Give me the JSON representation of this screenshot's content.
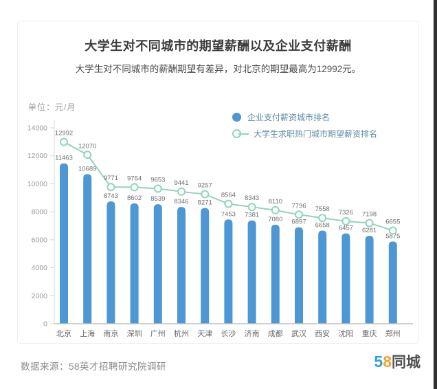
{
  "header": {
    "title": "大学生对不同城市的期望薪酬以及企业支付薪酬",
    "subtitle": "大学生对不同城市的薪酬期望有差异，对北京的期望最高为12992元。"
  },
  "chart_data": {
    "type": "bar",
    "title": "大学生对不同城市的期望薪酬以及企业支付薪酬",
    "unit_label": "单位：元/月",
    "categories": [
      "北京",
      "上海",
      "南京",
      "深圳",
      "广州",
      "杭州",
      "天津",
      "长沙",
      "济南",
      "成都",
      "武汉",
      "西安",
      "沈阳",
      "重庆",
      "郑州"
    ],
    "series": [
      {
        "name": "企业支付薪资城市排名",
        "type": "bar",
        "color": "#4D97D5",
        "values": [
          11463,
          10689,
          8743,
          8602,
          8539,
          8346,
          8271,
          7453,
          7381,
          7080,
          6897,
          6658,
          6457,
          6281,
          5875
        ]
      },
      {
        "name": "大学生求职热门城市期望薪资排名",
        "type": "line",
        "color": "#8FD4BE",
        "values": [
          12992,
          12070,
          9771,
          9754,
          9653,
          9441,
          9257,
          8564,
          8343,
          8110,
          7796,
          7558,
          7326,
          7198,
          6655
        ]
      }
    ],
    "ylim": [
      0,
      14000
    ],
    "yticks": [
      0,
      2000,
      4000,
      6000,
      8000,
      10000,
      12000,
      14000
    ],
    "grid": false,
    "legend_position": "top-right",
    "value_labels": true
  },
  "footer": {
    "source": "数据来源：58英才招聘研究院调研",
    "logo": {
      "digit5": "5",
      "digit8": "8",
      "text": "同城"
    }
  },
  "colors": {
    "bar": "#4D97D5",
    "line": "#8FD4BE",
    "marker_fill": "#FFFFFF",
    "legend_text": "#5E8CA6",
    "axis_line": "#D8D8D8",
    "baseline": "#BFBFBF",
    "axis_text": "#999999",
    "value_label": "#6E6E6E",
    "city_label": "#666666",
    "logo_5": "#2FA0DC",
    "logo_8": "#F5A32F"
  }
}
